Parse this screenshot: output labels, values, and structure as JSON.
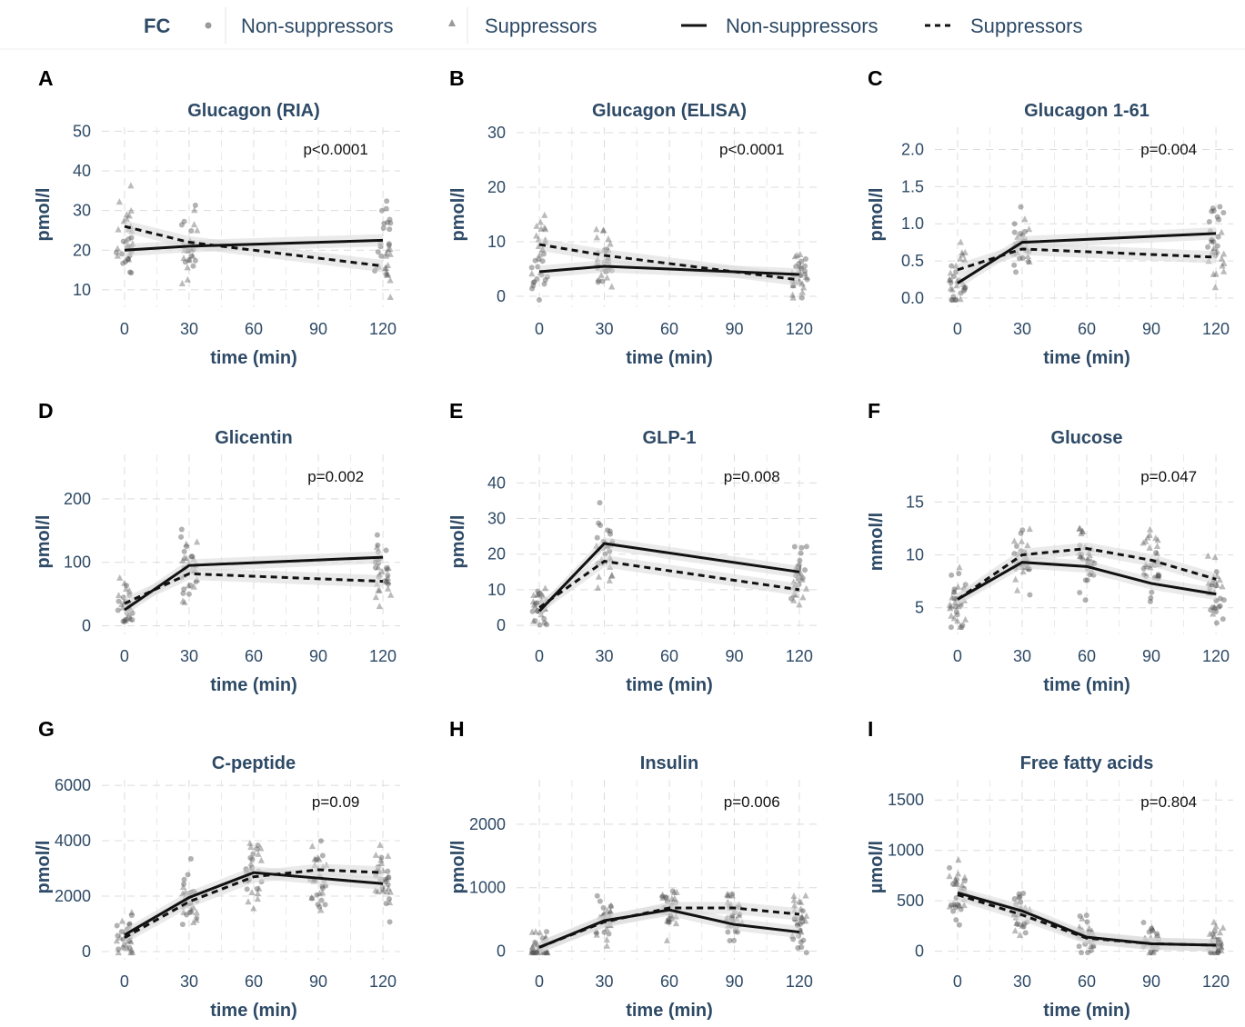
{
  "legend": {
    "title": "FC",
    "items": [
      {
        "kind": "point-circle",
        "label": "Non-suppressors"
      },
      {
        "kind": "point-triangle",
        "label": "Suppressors"
      },
      {
        "kind": "line-solid",
        "label": "Non-suppressors"
      },
      {
        "kind": "line-dashed",
        "label": "Suppressors"
      }
    ]
  },
  "colors": {
    "point": "#555555",
    "line": "#111111",
    "ribbon": "#d9d9d9",
    "text": "#2e4a66"
  },
  "chart_data": [
    {
      "letter": "A",
      "type": "line",
      "title": "Glucagon (RIA)",
      "xlabel": "time (min)",
      "ylabel": "pmol/l",
      "pvalue": "p<0.0001",
      "x": [
        0,
        30,
        120
      ],
      "xticks": [
        0,
        30,
        60,
        90,
        120
      ],
      "xlim": [
        -8,
        128
      ],
      "yticks": [
        10,
        20,
        30,
        40,
        50
      ],
      "ylim": [
        7,
        51
      ],
      "series": [
        {
          "name": "Non-suppressors",
          "style": "solid",
          "values": [
            20,
            21,
            22.5
          ]
        },
        {
          "name": "Suppressors",
          "style": "dashed",
          "values": [
            26,
            22,
            16
          ]
        }
      ]
    },
    {
      "letter": "B",
      "type": "line",
      "title": "Glucagon (ELISA)",
      "xlabel": "time (min)",
      "ylabel": "pmol/l",
      "pvalue": "p<0.0001",
      "x": [
        0,
        30,
        120
      ],
      "xticks": [
        0,
        30,
        60,
        90,
        120
      ],
      "xlim": [
        -8,
        128
      ],
      "yticks": [
        0,
        10,
        20,
        30
      ],
      "ylim": [
        -1,
        31
      ],
      "series": [
        {
          "name": "Non-suppressors",
          "style": "solid",
          "values": [
            4.5,
            5.5,
            4
          ]
        },
        {
          "name": "Suppressors",
          "style": "dashed",
          "values": [
            9.5,
            7.5,
            3
          ]
        }
      ]
    },
    {
      "letter": "C",
      "type": "line",
      "title": "Glucagon 1-61",
      "xlabel": "time (min)",
      "ylabel": "pmol/l",
      "pvalue": "p=0.004",
      "x": [
        0,
        30,
        120
      ],
      "xticks": [
        0,
        30,
        60,
        90,
        120
      ],
      "xlim": [
        -8,
        128
      ],
      "yticks": [
        "0.0",
        "0.5",
        "1.0",
        "1.5",
        "2.0"
      ],
      "ylim": [
        -0.05,
        2.3
      ],
      "series": [
        {
          "name": "Non-suppressors",
          "style": "solid",
          "values": [
            0.2,
            0.75,
            0.87
          ]
        },
        {
          "name": "Suppressors",
          "style": "dashed",
          "values": [
            0.38,
            0.66,
            0.55
          ]
        }
      ]
    },
    {
      "letter": "D",
      "type": "line",
      "title": "Glicentin",
      "xlabel": "time (min)",
      "ylabel": "pmol/l",
      "pvalue": "p=0.002",
      "x": [
        0,
        30,
        120
      ],
      "xticks": [
        0,
        30,
        60,
        90,
        120
      ],
      "xlim": [
        -8,
        128
      ],
      "yticks": [
        0,
        100,
        200
      ],
      "ylim": [
        -5,
        270
      ],
      "series": [
        {
          "name": "Non-suppressors",
          "style": "solid",
          "values": [
            25,
            95,
            108
          ]
        },
        {
          "name": "Suppressors",
          "style": "dashed",
          "values": [
            35,
            82,
            70
          ]
        }
      ]
    },
    {
      "letter": "E",
      "type": "line",
      "title": "GLP-1",
      "xlabel": "time (min)",
      "ylabel": "pmol/l",
      "pvalue": "p=0.008",
      "x": [
        0,
        30,
        120
      ],
      "xticks": [
        0,
        30,
        60,
        90,
        120
      ],
      "xlim": [
        -8,
        128
      ],
      "yticks": [
        0,
        10,
        20,
        30,
        40
      ],
      "ylim": [
        -1,
        48
      ],
      "series": [
        {
          "name": "Non-suppressors",
          "style": "solid",
          "values": [
            4,
            23,
            15
          ]
        },
        {
          "name": "Suppressors",
          "style": "dashed",
          "values": [
            5,
            18,
            10
          ]
        }
      ]
    },
    {
      "letter": "F",
      "type": "line",
      "title": "Glucose",
      "xlabel": "time (min)",
      "ylabel": "mmol/l",
      "pvalue": "p=0.047",
      "x": [
        0,
        30,
        60,
        90,
        120
      ],
      "xticks": [
        0,
        30,
        60,
        90,
        120
      ],
      "xlim": [
        -8,
        128
      ],
      "yticks": [
        5,
        10,
        15
      ],
      "ylim": [
        3,
        19.5
      ],
      "series": [
        {
          "name": "Non-suppressors",
          "style": "solid",
          "values": [
            5.8,
            9.3,
            8.9,
            7.3,
            6.3
          ]
        },
        {
          "name": "Suppressors",
          "style": "dashed",
          "values": [
            5.8,
            10,
            10.6,
            9.5,
            7.7
          ]
        }
      ]
    },
    {
      "letter": "G",
      "type": "line",
      "title": "C-peptide",
      "xlabel": "time (min)",
      "ylabel": "pmol/l",
      "pvalue": "p=0.09",
      "x": [
        0,
        30,
        60,
        90,
        120
      ],
      "xticks": [
        0,
        30,
        60,
        90,
        120
      ],
      "xlim": [
        -8,
        128
      ],
      "yticks": [
        0,
        2000,
        4000,
        6000
      ],
      "ylim": [
        -100,
        6200
      ],
      "series": [
        {
          "name": "Non-suppressors",
          "style": "solid",
          "values": [
            600,
            1950,
            2850,
            2650,
            2450
          ]
        },
        {
          "name": "Suppressors",
          "style": "dashed",
          "values": [
            500,
            1800,
            2700,
            2950,
            2850
          ]
        }
      ]
    },
    {
      "letter": "H",
      "type": "line",
      "title": "Insulin",
      "xlabel": "time (min)",
      "ylabel": "pmol/l",
      "pvalue": "p=0.006",
      "x": [
        0,
        30,
        60,
        90,
        120
      ],
      "xticks": [
        0,
        30,
        60,
        90,
        120
      ],
      "xlim": [
        -8,
        128
      ],
      "yticks": [
        0,
        1000,
        2000
      ],
      "ylim": [
        -50,
        2700
      ],
      "series": [
        {
          "name": "Non-suppressors",
          "style": "solid",
          "values": [
            60,
            480,
            650,
            420,
            300
          ]
        },
        {
          "name": "Suppressors",
          "style": "dashed",
          "values": [
            60,
            460,
            680,
            680,
            580
          ]
        }
      ]
    },
    {
      "letter": "I",
      "type": "line",
      "title": "Free fatty acids",
      "xlabel": "time (min)",
      "ylabel": "µmol/l",
      "pvalue": "p=0.804",
      "x": [
        0,
        30,
        60,
        90,
        120
      ],
      "xticks": [
        0,
        30,
        60,
        90,
        120
      ],
      "xlim": [
        -8,
        128
      ],
      "yticks": [
        0,
        500,
        1000,
        1500
      ],
      "ylim": [
        -30,
        1700
      ],
      "series": [
        {
          "name": "Non-suppressors",
          "style": "solid",
          "values": [
            580,
            400,
            140,
            75,
            60
          ]
        },
        {
          "name": "Suppressors",
          "style": "dashed",
          "values": [
            560,
            360,
            130,
            75,
            60
          ]
        }
      ]
    }
  ]
}
